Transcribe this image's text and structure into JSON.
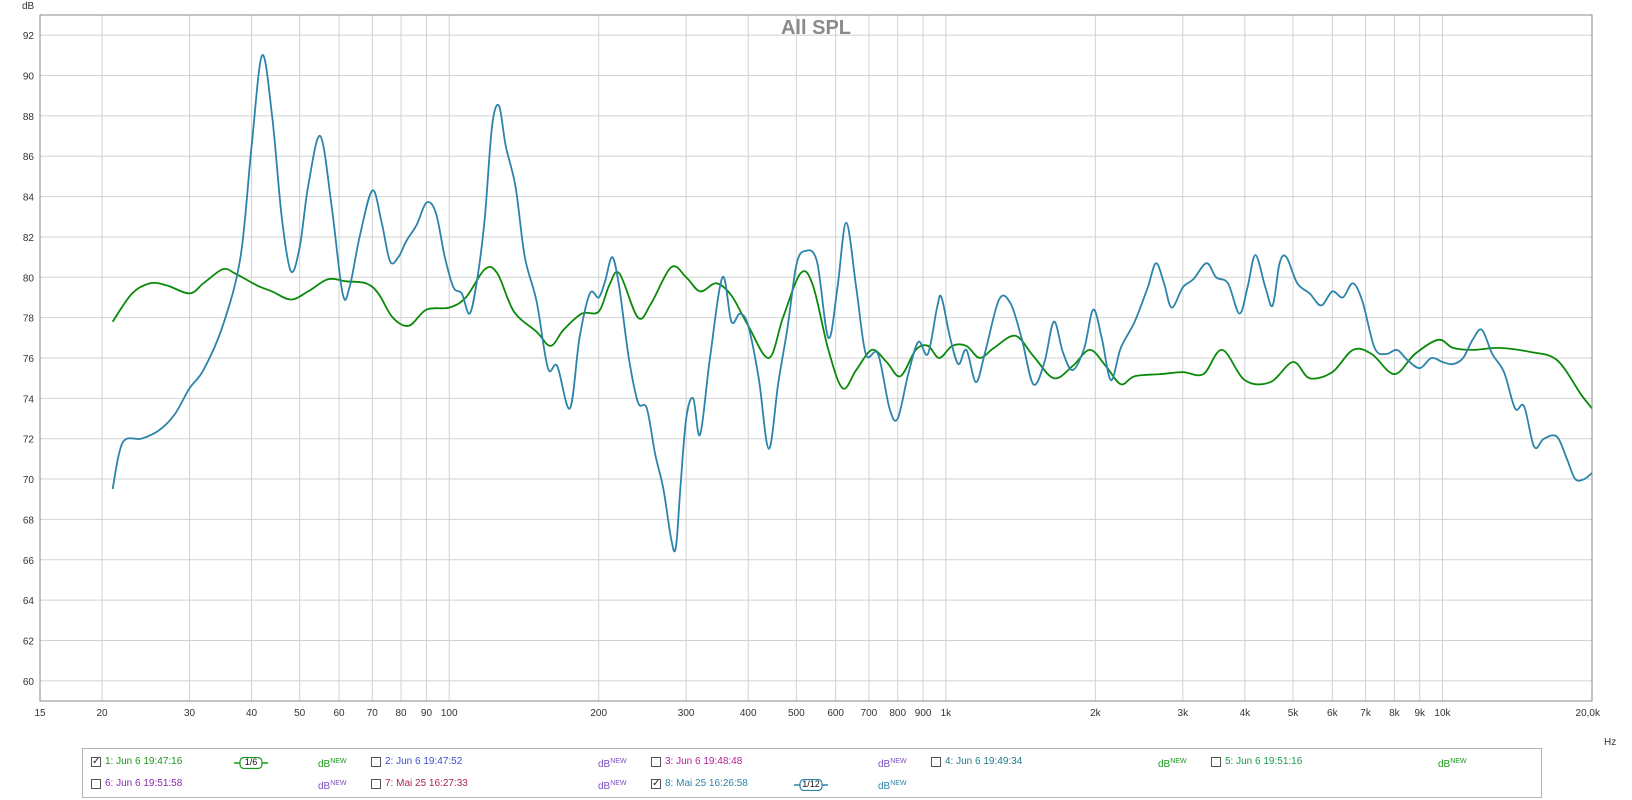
{
  "chart_data": {
    "type": "line",
    "title": "All SPL",
    "ylabel": "dB",
    "xunit": "Hz",
    "xscale": "log",
    "xlim": [
      15,
      20000
    ],
    "ylim": [
      59,
      93
    ],
    "grid": true,
    "yticks": [
      60,
      62,
      64,
      66,
      68,
      70,
      72,
      74,
      76,
      78,
      80,
      82,
      84,
      86,
      88,
      90,
      92
    ],
    "xticks": [
      {
        "v": 15,
        "label": "15"
      },
      {
        "v": 20,
        "label": "20"
      },
      {
        "v": 30,
        "label": "30"
      },
      {
        "v": 40,
        "label": "40"
      },
      {
        "v": 50,
        "label": "50"
      },
      {
        "v": 60,
        "label": "60"
      },
      {
        "v": 70,
        "label": "70"
      },
      {
        "v": 80,
        "label": "80"
      },
      {
        "v": 90,
        "label": "90"
      },
      {
        "v": 100,
        "label": "100"
      },
      {
        "v": 200,
        "label": "200"
      },
      {
        "v": 300,
        "label": "300"
      },
      {
        "v": 400,
        "label": "400"
      },
      {
        "v": 500,
        "label": "500"
      },
      {
        "v": 600,
        "label": "600"
      },
      {
        "v": 700,
        "label": "700"
      },
      {
        "v": 800,
        "label": "800"
      },
      {
        "v": 900,
        "label": "900"
      },
      {
        "v": 1000,
        "label": "1k"
      },
      {
        "v": 2000,
        "label": "2k"
      },
      {
        "v": 3000,
        "label": "3k"
      },
      {
        "v": 4000,
        "label": "4k"
      },
      {
        "v": 5000,
        "label": "5k"
      },
      {
        "v": 6000,
        "label": "6k"
      },
      {
        "v": 7000,
        "label": "7k"
      },
      {
        "v": 8000,
        "label": "8k"
      },
      {
        "v": 9000,
        "label": "9k"
      },
      {
        "v": 10000,
        "label": "10k"
      },
      {
        "v": 20000,
        "label": "20,0k"
      }
    ],
    "series": [
      {
        "legend_index": 1,
        "color": "#0a8a0a",
        "points": [
          [
            21,
            77.8
          ],
          [
            23,
            79.2
          ],
          [
            25,
            79.7
          ],
          [
            27,
            79.6
          ],
          [
            30,
            79.2
          ],
          [
            32,
            79.7
          ],
          [
            35,
            80.4
          ],
          [
            37,
            80.2
          ],
          [
            41,
            79.6
          ],
          [
            44,
            79.3
          ],
          [
            48,
            78.9
          ],
          [
            52,
            79.3
          ],
          [
            57,
            79.9
          ],
          [
            62,
            79.8
          ],
          [
            68,
            79.7
          ],
          [
            72,
            79.2
          ],
          [
            77,
            78.0
          ],
          [
            83,
            77.6
          ],
          [
            90,
            78.4
          ],
          [
            100,
            78.5
          ],
          [
            108,
            79.0
          ],
          [
            118,
            80.4
          ],
          [
            125,
            80.2
          ],
          [
            135,
            78.3
          ],
          [
            150,
            77.3
          ],
          [
            160,
            76.6
          ],
          [
            170,
            77.4
          ],
          [
            185,
            78.2
          ],
          [
            200,
            78.3
          ],
          [
            210,
            79.6
          ],
          [
            220,
            80.2
          ],
          [
            240,
            78.0
          ],
          [
            255,
            78.7
          ],
          [
            280,
            80.5
          ],
          [
            300,
            80.0
          ],
          [
            320,
            79.3
          ],
          [
            345,
            79.7
          ],
          [
            370,
            79.1
          ],
          [
            400,
            77.6
          ],
          [
            440,
            76.0
          ],
          [
            470,
            78.0
          ],
          [
            510,
            80.2
          ],
          [
            540,
            79.6
          ],
          [
            580,
            76.4
          ],
          [
            620,
            74.5
          ],
          [
            660,
            75.4
          ],
          [
            710,
            76.4
          ],
          [
            760,
            75.8
          ],
          [
            810,
            75.1
          ],
          [
            870,
            76.4
          ],
          [
            920,
            76.6
          ],
          [
            970,
            76.0
          ],
          [
            1030,
            76.6
          ],
          [
            1100,
            76.6
          ],
          [
            1170,
            76.0
          ],
          [
            1250,
            76.5
          ],
          [
            1380,
            77.1
          ],
          [
            1500,
            76.1
          ],
          [
            1650,
            75.0
          ],
          [
            1800,
            75.6
          ],
          [
            1950,
            76.4
          ],
          [
            2100,
            75.6
          ],
          [
            2250,
            74.7
          ],
          [
            2400,
            75.1
          ],
          [
            2700,
            75.2
          ],
          [
            3000,
            75.3
          ],
          [
            3300,
            75.2
          ],
          [
            3600,
            76.4
          ],
          [
            4000,
            74.9
          ],
          [
            4500,
            74.8
          ],
          [
            5000,
            75.8
          ],
          [
            5400,
            75.0
          ],
          [
            6000,
            75.3
          ],
          [
            6600,
            76.4
          ],
          [
            7200,
            76.2
          ],
          [
            8000,
            75.2
          ],
          [
            8800,
            76.2
          ],
          [
            9800,
            76.9
          ],
          [
            10500,
            76.5
          ],
          [
            11500,
            76.4
          ],
          [
            13000,
            76.5
          ],
          [
            15000,
            76.3
          ],
          [
            17000,
            75.9
          ],
          [
            19000,
            74.2
          ],
          [
            20000,
            73.5
          ]
        ]
      },
      {
        "legend_index": 8,
        "color": "#2c84aa",
        "points": [
          [
            21,
            69.5
          ],
          [
            22,
            71.8
          ],
          [
            24,
            72.0
          ],
          [
            26,
            72.4
          ],
          [
            28,
            73.2
          ],
          [
            30,
            74.5
          ],
          [
            32,
            75.4
          ],
          [
            35,
            77.6
          ],
          [
            38,
            81.0
          ],
          [
            40,
            86.5
          ],
          [
            42,
            91.0
          ],
          [
            44,
            88.0
          ],
          [
            46,
            83.0
          ],
          [
            48,
            80.3
          ],
          [
            50,
            81.5
          ],
          [
            52,
            84.5
          ],
          [
            55,
            87.0
          ],
          [
            58,
            83.5
          ],
          [
            61,
            79.2
          ],
          [
            63,
            79.5
          ],
          [
            66,
            82.0
          ],
          [
            70,
            84.3
          ],
          [
            73,
            82.8
          ],
          [
            76,
            80.8
          ],
          [
            79,
            81.0
          ],
          [
            82,
            81.8
          ],
          [
            86,
            82.6
          ],
          [
            90,
            83.7
          ],
          [
            94,
            83.2
          ],
          [
            98,
            81.0
          ],
          [
            102,
            79.5
          ],
          [
            106,
            79.2
          ],
          [
            110,
            78.2
          ],
          [
            114,
            80.0
          ],
          [
            118,
            83.0
          ],
          [
            122,
            87.5
          ],
          [
            126,
            88.5
          ],
          [
            130,
            86.5
          ],
          [
            136,
            84.5
          ],
          [
            142,
            81.0
          ],
          [
            150,
            78.8
          ],
          [
            158,
            75.5
          ],
          [
            165,
            75.6
          ],
          [
            175,
            73.5
          ],
          [
            183,
            77.0
          ],
          [
            192,
            79.2
          ],
          [
            200,
            79.0
          ],
          [
            206,
            79.8
          ],
          [
            213,
            81.0
          ],
          [
            220,
            79.5
          ],
          [
            230,
            76.0
          ],
          [
            240,
            73.8
          ],
          [
            250,
            73.5
          ],
          [
            260,
            71.2
          ],
          [
            270,
            69.5
          ],
          [
            280,
            67.0
          ],
          [
            286,
            66.6
          ],
          [
            292,
            69.5
          ],
          [
            300,
            73.0
          ],
          [
            310,
            74.0
          ],
          [
            320,
            72.2
          ],
          [
            335,
            76.0
          ],
          [
            355,
            80.0
          ],
          [
            370,
            77.8
          ],
          [
            385,
            78.2
          ],
          [
            400,
            77.6
          ],
          [
            420,
            75.0
          ],
          [
            440,
            71.5
          ],
          [
            460,
            74.8
          ],
          [
            480,
            77.5
          ],
          [
            500,
            80.6
          ],
          [
            520,
            81.3
          ],
          [
            550,
            80.8
          ],
          [
            580,
            77.0
          ],
          [
            605,
            79.5
          ],
          [
            630,
            82.7
          ],
          [
            660,
            79.5
          ],
          [
            690,
            76.2
          ],
          [
            730,
            76.2
          ],
          [
            770,
            73.5
          ],
          [
            800,
            73.0
          ],
          [
            840,
            75.2
          ],
          [
            880,
            76.8
          ],
          [
            920,
            76.2
          ],
          [
            960,
            78.5
          ],
          [
            980,
            79.0
          ],
          [
            1020,
            77.0
          ],
          [
            1060,
            75.7
          ],
          [
            1100,
            76.4
          ],
          [
            1150,
            74.8
          ],
          [
            1200,
            76.3
          ],
          [
            1280,
            78.9
          ],
          [
            1350,
            78.7
          ],
          [
            1420,
            77.0
          ],
          [
            1500,
            74.7
          ],
          [
            1580,
            75.8
          ],
          [
            1650,
            77.8
          ],
          [
            1720,
            76.3
          ],
          [
            1800,
            75.4
          ],
          [
            1900,
            76.5
          ],
          [
            1980,
            78.4
          ],
          [
            2060,
            77.0
          ],
          [
            2150,
            74.9
          ],
          [
            2250,
            76.5
          ],
          [
            2400,
            77.8
          ],
          [
            2550,
            79.5
          ],
          [
            2650,
            80.7
          ],
          [
            2750,
            79.7
          ],
          [
            2850,
            78.5
          ],
          [
            3000,
            79.5
          ],
          [
            3150,
            79.9
          ],
          [
            3350,
            80.7
          ],
          [
            3500,
            80.0
          ],
          [
            3700,
            79.7
          ],
          [
            3900,
            78.2
          ],
          [
            4050,
            79.5
          ],
          [
            4200,
            81.1
          ],
          [
            4400,
            79.5
          ],
          [
            4550,
            78.6
          ],
          [
            4700,
            80.7
          ],
          [
            4850,
            81.0
          ],
          [
            5100,
            79.7
          ],
          [
            5400,
            79.2
          ],
          [
            5700,
            78.6
          ],
          [
            6000,
            79.3
          ],
          [
            6300,
            79.0
          ],
          [
            6600,
            79.7
          ],
          [
            6900,
            78.8
          ],
          [
            7300,
            76.5
          ],
          [
            7700,
            76.2
          ],
          [
            8100,
            76.4
          ],
          [
            8500,
            75.9
          ],
          [
            9000,
            75.5
          ],
          [
            9500,
            76.0
          ],
          [
            10000,
            75.8
          ],
          [
            10500,
            75.7
          ],
          [
            11000,
            76.0
          ],
          [
            11500,
            76.9
          ],
          [
            12000,
            77.4
          ],
          [
            12600,
            76.2
          ],
          [
            13300,
            75.3
          ],
          [
            14000,
            73.5
          ],
          [
            14600,
            73.6
          ],
          [
            15300,
            71.6
          ],
          [
            16000,
            72.0
          ],
          [
            17000,
            72.1
          ],
          [
            17800,
            71.0
          ],
          [
            18500,
            70.0
          ],
          [
            19300,
            70.0
          ],
          [
            20000,
            70.3
          ]
        ]
      }
    ]
  },
  "legend": {
    "db_label": "dB",
    "db_sup": "NEW",
    "items": [
      {
        "label": "1: Jun 6 19:47:16",
        "checked": true,
        "color": "#189818",
        "smoothing": "1/6"
      },
      {
        "label": "2: Jun 6 19:47:52",
        "checked": false,
        "color": "#3c4fd0"
      },
      {
        "label": "3: Jun 6 19:48:48",
        "checked": false,
        "color": "#b0209a"
      },
      {
        "label": "4: Jun 6 19:49:34",
        "checked": false,
        "color": "#1e7a8a"
      },
      {
        "label": "5: Jun 6 19:51:16",
        "checked": false,
        "color": "#1a9a4a"
      },
      {
        "label": "6: Jun 6 19:51:58",
        "checked": false,
        "color": "#8a2ab0"
      },
      {
        "label": "7: Mai 25 16:27:33",
        "checked": false,
        "color": "#b0205a"
      },
      {
        "label": "8: Mai 25 16:26:58",
        "checked": true,
        "color": "#2c84aa",
        "smoothing": "1/12"
      }
    ],
    "db_colors": [
      "#189818",
      "#7b4dbd",
      "#7b4dbd",
      "#189818",
      "#189818",
      "#7b4dbd",
      "#7b4dbd",
      "#2c84aa"
    ]
  }
}
